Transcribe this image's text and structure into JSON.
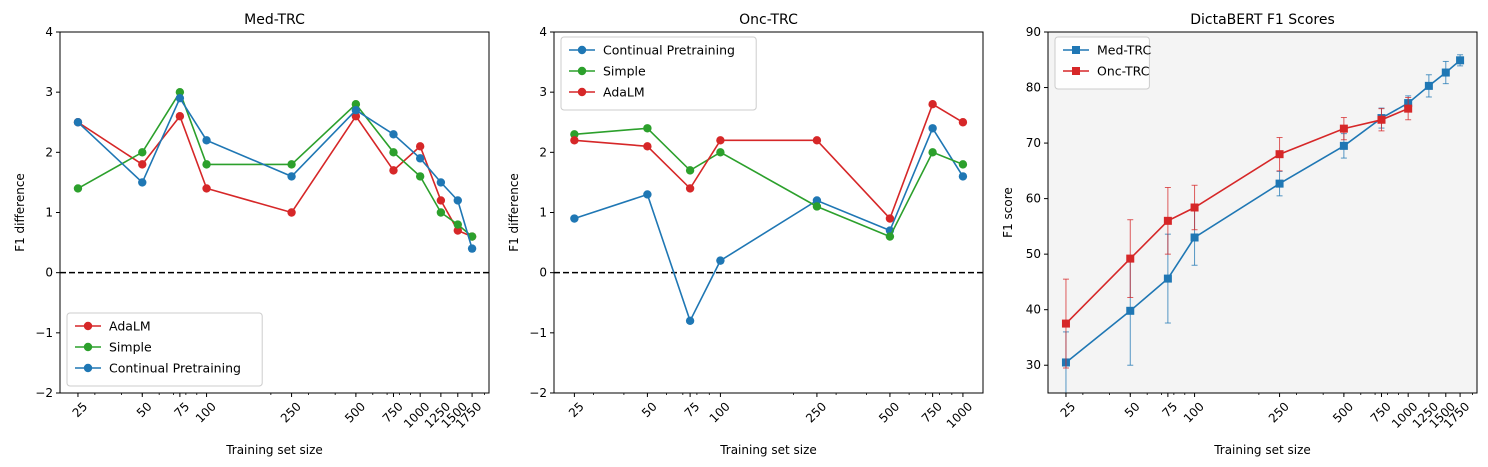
{
  "colors": {
    "blue": "#1f77b4",
    "green": "#2ca02c",
    "red": "#d62728",
    "panel3_bg": "#f4f4f4"
  },
  "chart_data": [
    {
      "type": "line",
      "title": "Med-TRC",
      "xlabel": "Training set size",
      "ylabel": "F1 difference",
      "x_scale": "log",
      "ylim": [
        -2,
        4
      ],
      "yticks": [
        "−2",
        "−1",
        "0",
        "1",
        "2",
        "3",
        "4"
      ],
      "x": [
        25,
        50,
        75,
        100,
        250,
        500,
        750,
        1000,
        1250,
        1500,
        1750
      ],
      "xtick_labels": [
        "25",
        "50",
        "75",
        "100",
        "250",
        "500",
        "750",
        "1000",
        "1250",
        "1500",
        "1750"
      ],
      "reference_line": 0,
      "legend_position": "lower-left",
      "series": [
        {
          "name": "AdaLM",
          "color": "red",
          "values": [
            2.5,
            1.8,
            2.6,
            1.4,
            1.0,
            2.6,
            1.7,
            2.1,
            1.2,
            0.7,
            0.6
          ]
        },
        {
          "name": "Simple",
          "color": "green",
          "values": [
            1.4,
            2.0,
            3.0,
            1.8,
            1.8,
            2.8,
            2.0,
            1.6,
            1.0,
            0.8,
            0.6
          ]
        },
        {
          "name": "Continual Pretraining",
          "color": "blue",
          "values": [
            2.5,
            1.5,
            2.9,
            2.2,
            1.6,
            2.7,
            2.3,
            1.9,
            1.5,
            1.2,
            0.4
          ]
        }
      ]
    },
    {
      "type": "line",
      "title": "Onc-TRC",
      "xlabel": "Training set size",
      "ylabel": "F1 difference",
      "x_scale": "log",
      "ylim": [
        -2,
        4
      ],
      "yticks": [
        "−2",
        "−1",
        "0",
        "1",
        "2",
        "3",
        "4"
      ],
      "x": [
        25,
        50,
        75,
        100,
        250,
        500,
        750,
        1000
      ],
      "xtick_labels": [
        "25",
        "50",
        "75",
        "100",
        "250",
        "500",
        "750",
        "1000"
      ],
      "reference_line": 0,
      "legend_position": "upper-left",
      "series": [
        {
          "name": "Continual Pretraining",
          "color": "blue",
          "values": [
            0.9,
            1.3,
            -0.8,
            0.2,
            1.2,
            0.7,
            2.4,
            1.6
          ]
        },
        {
          "name": "Simple",
          "color": "green",
          "values": [
            2.3,
            2.4,
            1.7,
            2.0,
            1.1,
            0.6,
            2.0,
            1.8
          ]
        },
        {
          "name": "AdaLM",
          "color": "red",
          "values": [
            2.2,
            2.1,
            1.4,
            2.2,
            2.2,
            0.9,
            2.8,
            2.5
          ]
        }
      ]
    },
    {
      "type": "line",
      "title": "DictaBERT F1 Scores",
      "xlabel": "Training set size",
      "ylabel": "F1 score",
      "x_scale": "log",
      "ylim": [
        25,
        90
      ],
      "yticks": [
        "30",
        "40",
        "50",
        "60",
        "70",
        "80",
        "90"
      ],
      "xtick_labels": [
        "25",
        "50",
        "75",
        "100",
        "250",
        "500",
        "750",
        "1000",
        "1250",
        "1500",
        "1750"
      ],
      "xtick_values": [
        25,
        50,
        75,
        100,
        250,
        500,
        750,
        1000,
        1250,
        1500,
        1750
      ],
      "legend_position": "upper-left",
      "series": [
        {
          "name": "Med-TRC",
          "color": "blue",
          "marker": "square",
          "x": [
            25,
            50,
            75,
            100,
            250,
            500,
            750,
            1000,
            1250,
            1500,
            1750
          ],
          "values": [
            30.5,
            39.8,
            45.6,
            53.0,
            62.7,
            69.5,
            74.5,
            77.2,
            80.3,
            82.7,
            84.9
          ],
          "errors": [
            5.5,
            9.8,
            8.0,
            5.0,
            2.2,
            2.2,
            1.8,
            1.3,
            2.0,
            2.0,
            1.0
          ]
        },
        {
          "name": "Onc-TRC",
          "color": "red",
          "marker": "square",
          "x": [
            25,
            50,
            75,
            100,
            250,
            500,
            750,
            1000
          ],
          "values": [
            37.5,
            49.2,
            56.0,
            58.4,
            68.0,
            72.6,
            74.2,
            76.2
          ],
          "errors": [
            8.0,
            7.0,
            6.0,
            4.0,
            3.0,
            2.0,
            2.0,
            2.0
          ]
        }
      ]
    }
  ]
}
